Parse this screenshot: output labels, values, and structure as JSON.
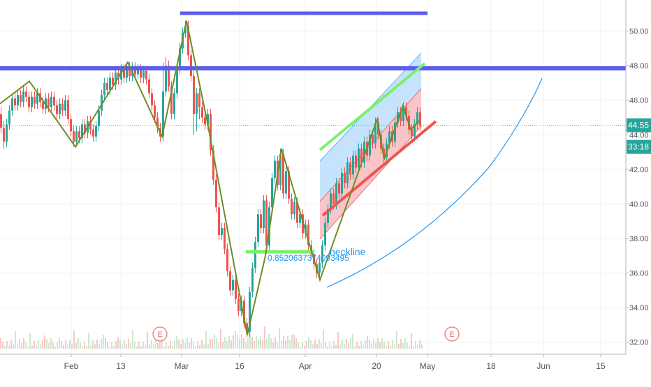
{
  "chart_data": {
    "type": "line",
    "price_axis_ticks": [
      32,
      34,
      36,
      38,
      40,
      42,
      44,
      46,
      48,
      50
    ],
    "price_axis_tick_labels": [
      "32.00",
      "34.00",
      "36.00",
      "38.00",
      "40.00",
      "42.00",
      "44.00",
      "46.00",
      "48.00",
      "50.00"
    ],
    "ylim": [
      31.3,
      51.8
    ],
    "date_axis_labels": [
      "Feb",
      "13",
      "Mar",
      "16",
      "Apr",
      "20",
      "May",
      "18",
      "Jun",
      "15"
    ],
    "last_price": {
      "label": "44.55",
      "value": 44.55,
      "color": "#26a69a"
    },
    "countdown": {
      "label": "33:18"
    },
    "earnings_markers": [
      {
        "date_label": "Feb 22",
        "label": "E"
      },
      {
        "date_label": "May 07",
        "label": "E"
      }
    ],
    "annotations": [
      {
        "kind": "text",
        "label": "neckline",
        "value": 36.9,
        "color": "#2196f3"
      },
      {
        "kind": "text",
        "label": "0.8520637374093495",
        "value": 36.3,
        "color": "#2196f3"
      }
    ],
    "horizontal_levels": [
      {
        "value": 50.9,
        "color": "#5b5cf0",
        "span": "short"
      },
      {
        "value": 47.6,
        "color": "#5b5cf0",
        "span": "full"
      },
      {
        "value": 37.0,
        "color": "#7cf06b",
        "span": "short"
      }
    ],
    "zigzag_points": [
      [
        0,
        45.8
      ],
      [
        42,
        47.1
      ],
      [
        108,
        43.3
      ],
      [
        183,
        48.2
      ],
      [
        232,
        43.9
      ],
      [
        267,
        50.6
      ],
      [
        297,
        44.7
      ],
      [
        354,
        32.4
      ],
      [
        380,
        37.0
      ],
      [
        403,
        43.2
      ],
      [
        458,
        35.6
      ],
      [
        540,
        44.9
      ],
      [
        550,
        42.6
      ],
      [
        577,
        45.7
      ],
      [
        588,
        44.3
      ],
      [
        600,
        44.8
      ]
    ],
    "candles": [
      [
        0,
        45.2,
        44.4,
        45.6,
        44.1
      ],
      [
        4,
        44.4,
        43.6,
        44.8,
        43.2
      ],
      [
        8,
        43.6,
        44.6,
        44.9,
        43.3
      ],
      [
        12,
        44.6,
        45.4,
        45.7,
        44.3
      ],
      [
        16,
        45.4,
        46.1,
        46.4,
        45.1
      ],
      [
        20,
        46.1,
        45.7,
        46.4,
        45.4
      ],
      [
        24,
        45.7,
        46.3,
        46.6,
        45.4
      ],
      [
        28,
        46.3,
        45.9,
        46.6,
        45.6
      ],
      [
        32,
        45.9,
        46.5,
        46.8,
        45.6
      ],
      [
        36,
        46.5,
        46.2,
        46.8,
        45.9
      ],
      [
        40,
        46.2,
        45.6,
        46.5,
        45.3
      ],
      [
        44,
        45.6,
        46.2,
        46.5,
        45.3
      ],
      [
        48,
        46.2,
        45.8,
        46.5,
        45.5
      ],
      [
        52,
        45.8,
        46.4,
        46.7,
        45.5
      ],
      [
        56,
        46.4,
        45.9,
        46.7,
        45.6
      ],
      [
        60,
        45.9,
        45.5,
        46.2,
        45.2
      ],
      [
        64,
        45.5,
        46.1,
        46.4,
        45.2
      ],
      [
        68,
        46.1,
        45.6,
        46.4,
        45.3
      ],
      [
        72,
        45.6,
        46.2,
        46.5,
        45.3
      ],
      [
        76,
        46.2,
        45.7,
        46.5,
        45.4
      ],
      [
        80,
        45.7,
        45.2,
        46.0,
        44.9
      ],
      [
        84,
        45.2,
        45.8,
        46.1,
        44.9
      ],
      [
        88,
        45.8,
        45.4,
        46.1,
        45.1
      ],
      [
        92,
        45.4,
        46.0,
        46.3,
        45.1
      ],
      [
        96,
        46.0,
        44.9,
        46.3,
        44.6
      ],
      [
        100,
        44.9,
        44.2,
        45.2,
        43.9
      ],
      [
        104,
        44.2,
        43.6,
        44.5,
        43.3
      ],
      [
        108,
        43.6,
        44.2,
        44.5,
        43.3
      ],
      [
        112,
        44.2,
        43.8,
        44.5,
        43.5
      ],
      [
        116,
        43.8,
        44.6,
        44.9,
        43.5
      ],
      [
        120,
        44.6,
        44.1,
        44.9,
        43.8
      ],
      [
        124,
        44.1,
        44.8,
        45.1,
        43.8
      ],
      [
        128,
        44.8,
        44.3,
        45.1,
        44.0
      ],
      [
        132,
        44.3,
        43.9,
        44.6,
        43.6
      ],
      [
        136,
        43.9,
        44.5,
        44.8,
        43.6
      ],
      [
        140,
        44.5,
        45.4,
        45.7,
        44.2
      ],
      [
        144,
        45.4,
        46.3,
        46.6,
        45.1
      ],
      [
        148,
        46.3,
        47.0,
        47.3,
        46.0
      ],
      [
        152,
        47.0,
        46.6,
        47.3,
        46.3
      ],
      [
        156,
        46.6,
        47.3,
        47.6,
        46.3
      ],
      [
        160,
        47.3,
        46.9,
        47.6,
        46.6
      ],
      [
        164,
        46.9,
        47.6,
        47.9,
        46.6
      ],
      [
        168,
        47.6,
        47.2,
        47.9,
        46.9
      ],
      [
        172,
        47.2,
        47.8,
        48.1,
        46.9
      ],
      [
        176,
        47.8,
        47.3,
        48.1,
        47.0
      ],
      [
        180,
        47.3,
        47.9,
        48.2,
        47.0
      ],
      [
        184,
        47.9,
        47.4,
        48.2,
        47.1
      ],
      [
        188,
        47.4,
        47.9,
        48.2,
        47.1
      ],
      [
        192,
        47.9,
        47.5,
        48.2,
        47.2
      ],
      [
        196,
        47.5,
        47.8,
        48.1,
        47.2
      ],
      [
        200,
        47.8,
        47.3,
        48.1,
        47.0
      ],
      [
        204,
        47.3,
        47.7,
        48.0,
        47.0
      ],
      [
        208,
        47.7,
        47.2,
        48.0,
        46.9
      ],
      [
        212,
        47.2,
        46.4,
        47.5,
        46.1
      ],
      [
        216,
        46.4,
        45.7,
        46.7,
        45.4
      ],
      [
        220,
        45.7,
        45.0,
        46.0,
        44.7
      ],
      [
        224,
        45.0,
        44.4,
        45.3,
        44.1
      ],
      [
        228,
        44.4,
        43.9,
        44.7,
        43.6
      ],
      [
        232,
        43.9,
        46.5,
        48.2,
        43.6
      ],
      [
        236,
        46.5,
        48.0,
        48.5,
        46.2
      ],
      [
        240,
        48.0,
        46.8,
        48.3,
        46.5
      ],
      [
        244,
        46.8,
        45.2,
        47.1,
        44.9
      ],
      [
        248,
        45.2,
        46.4,
        46.7,
        44.9
      ],
      [
        252,
        46.4,
        47.8,
        48.1,
        46.1
      ],
      [
        256,
        47.8,
        49.0,
        49.3,
        47.5
      ],
      [
        260,
        49.0,
        49.9,
        50.2,
        48.7
      ],
      [
        264,
        49.9,
        50.3,
        50.6,
        49.6
      ],
      [
        268,
        50.3,
        48.6,
        50.6,
        48.3
      ],
      [
        272,
        48.6,
        47.4,
        48.9,
        47.1
      ],
      [
        276,
        47.4,
        45.2,
        47.7,
        44.0
      ],
      [
        280,
        45.2,
        46.4,
        46.7,
        44.2
      ],
      [
        284,
        46.4,
        45.6,
        46.7,
        44.9
      ],
      [
        288,
        45.6,
        45.0,
        45.9,
        44.7
      ],
      [
        292,
        45.0,
        44.6,
        45.3,
        44.3
      ],
      [
        296,
        44.6,
        45.2,
        45.5,
        44.3
      ],
      [
        300,
        45.2,
        43.1,
        45.5,
        42.8
      ],
      [
        304,
        43.1,
        41.4,
        43.4,
        41.1
      ],
      [
        308,
        41.4,
        39.8,
        41.7,
        39.5
      ],
      [
        312,
        39.8,
        38.2,
        40.1,
        37.9
      ],
      [
        316,
        38.2,
        38.6,
        38.9,
        37.9
      ],
      [
        320,
        38.6,
        37.4,
        38.9,
        37.1
      ],
      [
        324,
        37.4,
        36.1,
        37.7,
        35.8
      ],
      [
        328,
        36.1,
        35.0,
        36.4,
        34.7
      ],
      [
        332,
        35.0,
        35.6,
        35.9,
        34.7
      ],
      [
        336,
        35.6,
        34.5,
        35.9,
        34.2
      ],
      [
        340,
        34.5,
        33.8,
        34.8,
        33.5
      ],
      [
        344,
        33.8,
        34.4,
        34.7,
        33.5
      ],
      [
        348,
        34.4,
        33.1,
        34.7,
        32.8
      ],
      [
        352,
        33.1,
        32.6,
        33.4,
        32.3
      ],
      [
        356,
        32.6,
        34.9,
        35.2,
        32.3
      ],
      [
        360,
        34.9,
        36.3,
        36.6,
        34.6
      ],
      [
        364,
        36.3,
        37.8,
        38.1,
        36.0
      ],
      [
        368,
        37.8,
        39.4,
        39.7,
        37.5
      ],
      [
        372,
        39.4,
        38.6,
        39.7,
        38.3
      ],
      [
        376,
        38.6,
        40.2,
        40.5,
        38.3
      ],
      [
        380,
        40.2,
        37.6,
        40.5,
        37.3
      ],
      [
        384,
        37.6,
        39.8,
        40.1,
        37.3
      ],
      [
        388,
        39.8,
        41.5,
        41.8,
        39.5
      ],
      [
        392,
        41.5,
        42.5,
        42.8,
        41.2
      ],
      [
        396,
        42.5,
        41.1,
        42.8,
        40.8
      ],
      [
        400,
        41.1,
        42.9,
        43.2,
        40.8
      ],
      [
        404,
        42.9,
        40.6,
        43.2,
        40.3
      ],
      [
        408,
        40.6,
        41.9,
        42.2,
        40.3
      ],
      [
        412,
        41.9,
        40.3,
        42.2,
        40.0
      ],
      [
        416,
        40.3,
        39.4,
        40.6,
        39.1
      ],
      [
        420,
        39.4,
        40.1,
        40.4,
        39.1
      ],
      [
        424,
        40.1,
        38.9,
        40.4,
        38.6
      ],
      [
        428,
        38.9,
        39.4,
        39.7,
        38.6
      ],
      [
        432,
        39.4,
        38.3,
        39.7,
        38.0
      ],
      [
        436,
        38.3,
        38.8,
        39.1,
        38.0
      ],
      [
        440,
        38.8,
        37.6,
        39.1,
        37.3
      ],
      [
        444,
        37.6,
        37.1,
        37.9,
        36.8
      ],
      [
        448,
        37.1,
        36.5,
        37.4,
        36.2
      ],
      [
        452,
        36.5,
        36.0,
        36.8,
        35.7
      ],
      [
        456,
        36.0,
        36.6,
        36.9,
        35.7
      ],
      [
        460,
        36.6,
        37.6,
        37.9,
        36.3
      ],
      [
        464,
        37.6,
        38.9,
        39.2,
        37.3
      ],
      [
        468,
        38.9,
        39.7,
        40.0,
        38.6
      ],
      [
        472,
        39.7,
        40.6,
        40.9,
        39.4
      ],
      [
        476,
        40.6,
        40.0,
        40.9,
        39.7
      ],
      [
        480,
        40.0,
        41.2,
        41.5,
        39.7
      ],
      [
        484,
        41.2,
        40.6,
        41.5,
        40.3
      ],
      [
        488,
        40.6,
        41.8,
        42.1,
        40.3
      ],
      [
        492,
        41.8,
        41.2,
        42.1,
        40.9
      ],
      [
        496,
        41.2,
        42.4,
        42.7,
        40.9
      ],
      [
        500,
        42.4,
        41.7,
        42.7,
        41.4
      ],
      [
        504,
        41.7,
        42.8,
        43.1,
        41.4
      ],
      [
        508,
        42.8,
        42.1,
        43.1,
        41.8
      ],
      [
        512,
        42.1,
        43.2,
        43.5,
        41.8
      ],
      [
        516,
        43.2,
        42.4,
        43.5,
        42.1
      ],
      [
        520,
        42.4,
        43.6,
        43.9,
        42.1
      ],
      [
        524,
        43.6,
        42.8,
        43.9,
        42.5
      ],
      [
        528,
        42.8,
        44.0,
        44.3,
        42.5
      ],
      [
        532,
        44.0,
        43.5,
        44.3,
        43.2
      ],
      [
        536,
        43.5,
        44.7,
        45.0,
        43.2
      ],
      [
        540,
        44.7,
        44.0,
        45.0,
        43.7
      ],
      [
        544,
        44.0,
        43.2,
        44.3,
        42.9
      ],
      [
        548,
        43.2,
        42.7,
        43.5,
        42.4
      ],
      [
        552,
        42.7,
        43.5,
        43.8,
        42.4
      ],
      [
        556,
        43.5,
        44.2,
        44.5,
        43.2
      ],
      [
        560,
        44.2,
        43.6,
        44.5,
        43.3
      ],
      [
        564,
        43.6,
        44.7,
        45.0,
        43.3
      ],
      [
        568,
        44.7,
        45.3,
        45.6,
        44.4
      ],
      [
        572,
        45.3,
        44.8,
        45.6,
        44.5
      ],
      [
        576,
        44.8,
        45.6,
        45.9,
        44.5
      ],
      [
        580,
        45.6,
        45.1,
        45.9,
        44.8
      ],
      [
        584,
        45.1,
        44.3,
        45.4,
        44.0
      ],
      [
        588,
        44.3,
        43.9,
        44.6,
        43.6
      ],
      [
        592,
        43.9,
        44.6,
        44.9,
        43.6
      ],
      [
        596,
        44.6,
        45.3,
        45.6,
        44.3
      ],
      [
        600,
        45.3,
        44.55,
        45.6,
        44.2
      ]
    ]
  }
}
